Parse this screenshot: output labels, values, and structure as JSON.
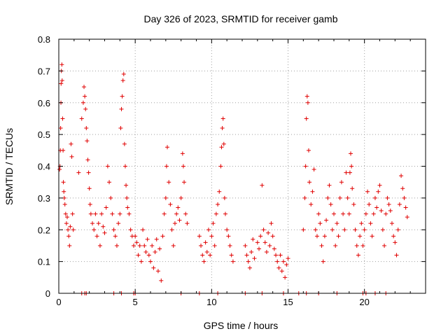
{
  "chart_data": {
    "type": "scatter",
    "title": "Day 326 of 2023, SRMTID for receiver gamb",
    "xlabel": "GPS time / hours",
    "ylabel": "SRMTID / TECUs",
    "xlim": [
      0,
      24
    ],
    "ylim": [
      0,
      0.8
    ],
    "x_ticks": [
      0,
      5,
      10,
      15,
      20
    ],
    "x_tick_labels": [
      "0",
      "5",
      "10",
      "15",
      "20"
    ],
    "y_ticks": [
      0,
      0.1,
      0.2,
      0.3,
      0.4,
      0.5,
      0.6,
      0.7,
      0.8
    ],
    "y_tick_labels": [
      "0",
      "0.1",
      "0.2",
      "0.3",
      "0.4",
      "0.5",
      "0.6",
      "0.7",
      "0.8"
    ],
    "grid": true,
    "marker": "+",
    "color": "#e00000",
    "zero_value_times": [
      1.5,
      1.7,
      1.8,
      3.6,
      4.1,
      4.9,
      5.0,
      8.0,
      9.2,
      10.4,
      12.2,
      13.3,
      14.7,
      15.7,
      16.2,
      17.0,
      18.2,
      19.9,
      20.1,
      20.7,
      21.4
    ],
    "series": [
      {
        "name": "SRMTID",
        "points": [
          [
            0.05,
            0.39
          ],
          [
            0.08,
            0.4
          ],
          [
            0.1,
            0.45
          ],
          [
            0.12,
            0.52
          ],
          [
            0.14,
            0.6
          ],
          [
            0.15,
            0.66
          ],
          [
            0.17,
            0.7
          ],
          [
            0.2,
            0.72
          ],
          [
            0.22,
            0.67
          ],
          [
            0.25,
            0.55
          ],
          [
            0.28,
            0.45
          ],
          [
            0.3,
            0.35
          ],
          [
            0.33,
            0.32
          ],
          [
            0.36,
            0.3
          ],
          [
            0.4,
            0.28
          ],
          [
            0.45,
            0.25
          ],
          [
            0.5,
            0.22
          ],
          [
            0.55,
            0.24
          ],
          [
            0.6,
            0.2
          ],
          [
            0.65,
            0.18
          ],
          [
            0.7,
            0.15
          ],
          [
            0.75,
            0.21
          ],
          [
            0.8,
            0.47
          ],
          [
            0.85,
            0.43
          ],
          [
            0.9,
            0.25
          ],
          [
            0.95,
            0.2
          ],
          [
            1.3,
            0.38
          ],
          [
            1.5,
            0.55
          ],
          [
            1.6,
            0.6
          ],
          [
            1.65,
            0.65
          ],
          [
            1.7,
            0.62
          ],
          [
            1.75,
            0.58
          ],
          [
            1.8,
            0.52
          ],
          [
            1.85,
            0.48
          ],
          [
            1.9,
            0.42
          ],
          [
            1.95,
            0.38
          ],
          [
            2.0,
            0.33
          ],
          [
            2.05,
            0.28
          ],
          [
            2.1,
            0.25
          ],
          [
            2.2,
            0.22
          ],
          [
            2.3,
            0.2
          ],
          [
            2.4,
            0.25
          ],
          [
            2.5,
            0.18
          ],
          [
            2.6,
            0.22
          ],
          [
            2.7,
            0.15
          ],
          [
            2.8,
            0.25
          ],
          [
            2.9,
            0.21
          ],
          [
            3.0,
            0.19
          ],
          [
            3.1,
            0.27
          ],
          [
            3.2,
            0.4
          ],
          [
            3.3,
            0.35
          ],
          [
            3.4,
            0.3
          ],
          [
            3.5,
            0.25
          ],
          [
            3.6,
            0.2
          ],
          [
            3.7,
            0.18
          ],
          [
            3.8,
            0.15
          ],
          [
            3.9,
            0.22
          ],
          [
            4.0,
            0.25
          ],
          [
            4.05,
            0.52
          ],
          [
            4.1,
            0.58
          ],
          [
            4.15,
            0.62
          ],
          [
            4.2,
            0.67
          ],
          [
            4.25,
            0.69
          ],
          [
            4.3,
            0.47
          ],
          [
            4.35,
            0.4
          ],
          [
            4.4,
            0.34
          ],
          [
            4.45,
            0.3
          ],
          [
            4.5,
            0.27
          ],
          [
            4.6,
            0.25
          ],
          [
            4.7,
            0.2
          ],
          [
            4.8,
            0.18
          ],
          [
            4.9,
            0.15
          ],
          [
            5.0,
            0.18
          ],
          [
            5.1,
            0.16
          ],
          [
            5.2,
            0.12
          ],
          [
            5.3,
            0.15
          ],
          [
            5.4,
            0.1
          ],
          [
            5.5,
            0.2
          ],
          [
            5.6,
            0.15
          ],
          [
            5.7,
            0.13
          ],
          [
            5.8,
            0.17
          ],
          [
            5.9,
            0.12
          ],
          [
            6.0,
            0.1
          ],
          [
            6.1,
            0.15
          ],
          [
            6.2,
            0.08
          ],
          [
            6.3,
            0.13
          ],
          [
            6.4,
            0.17
          ],
          [
            6.5,
            0.07
          ],
          [
            6.6,
            0.14
          ],
          [
            6.7,
            0.04
          ],
          [
            6.8,
            0.18
          ],
          [
            6.9,
            0.25
          ],
          [
            7.0,
            0.3
          ],
          [
            7.05,
            0.4
          ],
          [
            7.1,
            0.46
          ],
          [
            7.2,
            0.35
          ],
          [
            7.3,
            0.28
          ],
          [
            7.4,
            0.2
          ],
          [
            7.5,
            0.15
          ],
          [
            7.6,
            0.22
          ],
          [
            7.7,
            0.25
          ],
          [
            7.8,
            0.27
          ],
          [
            7.9,
            0.23
          ],
          [
            8.0,
            0.3
          ],
          [
            8.1,
            0.44
          ],
          [
            8.15,
            0.4
          ],
          [
            8.2,
            0.35
          ],
          [
            8.3,
            0.25
          ],
          [
            8.4,
            0.22
          ],
          [
            9.2,
            0.18
          ],
          [
            9.3,
            0.15
          ],
          [
            9.4,
            0.12
          ],
          [
            9.5,
            0.1
          ],
          [
            9.6,
            0.16
          ],
          [
            9.7,
            0.13
          ],
          [
            9.8,
            0.2
          ],
          [
            9.9,
            0.12
          ],
          [
            10.0,
            0.18
          ],
          [
            10.1,
            0.22
          ],
          [
            10.2,
            0.15
          ],
          [
            10.3,
            0.25
          ],
          [
            10.4,
            0.28
          ],
          [
            10.5,
            0.32
          ],
          [
            10.6,
            0.4
          ],
          [
            10.65,
            0.46
          ],
          [
            10.7,
            0.52
          ],
          [
            10.75,
            0.55
          ],
          [
            10.8,
            0.47
          ],
          [
            10.85,
            0.3
          ],
          [
            10.9,
            0.25
          ],
          [
            11.0,
            0.2
          ],
          [
            11.1,
            0.18
          ],
          [
            11.2,
            0.15
          ],
          [
            11.3,
            0.12
          ],
          [
            11.4,
            0.1
          ],
          [
            12.2,
            0.15
          ],
          [
            12.3,
            0.12
          ],
          [
            12.4,
            0.1
          ],
          [
            12.5,
            0.08
          ],
          [
            12.6,
            0.13
          ],
          [
            12.7,
            0.17
          ],
          [
            12.8,
            0.11
          ],
          [
            13.0,
            0.16
          ],
          [
            13.1,
            0.14
          ],
          [
            13.2,
            0.18
          ],
          [
            13.3,
            0.34
          ],
          [
            13.4,
            0.2
          ],
          [
            13.5,
            0.16
          ],
          [
            13.6,
            0.13
          ],
          [
            13.7,
            0.19
          ],
          [
            13.8,
            0.15
          ],
          [
            13.9,
            0.22
          ],
          [
            14.0,
            0.18
          ],
          [
            14.1,
            0.14
          ],
          [
            14.2,
            0.12
          ],
          [
            14.3,
            0.1
          ],
          [
            14.4,
            0.08
          ],
          [
            14.5,
            0.12
          ],
          [
            14.6,
            0.07
          ],
          [
            14.7,
            0.1
          ],
          [
            14.8,
            0.05
          ],
          [
            14.9,
            0.09
          ],
          [
            15.0,
            0.11
          ],
          [
            16.0,
            0.2
          ],
          [
            16.1,
            0.3
          ],
          [
            16.15,
            0.4
          ],
          [
            16.2,
            0.55
          ],
          [
            16.25,
            0.62
          ],
          [
            16.3,
            0.6
          ],
          [
            16.35,
            0.45
          ],
          [
            16.4,
            0.35
          ],
          [
            16.5,
            0.28
          ],
          [
            16.6,
            0.32
          ],
          [
            16.7,
            0.39
          ],
          [
            16.8,
            0.2
          ],
          [
            16.9,
            0.18
          ],
          [
            17.0,
            0.25
          ],
          [
            17.1,
            0.22
          ],
          [
            17.2,
            0.15
          ],
          [
            17.3,
            0.1
          ],
          [
            17.4,
            0.18
          ],
          [
            17.5,
            0.23
          ],
          [
            17.6,
            0.3
          ],
          [
            17.7,
            0.34
          ],
          [
            17.8,
            0.28
          ],
          [
            17.9,
            0.2
          ],
          [
            18.0,
            0.25
          ],
          [
            18.1,
            0.15
          ],
          [
            18.2,
            0.22
          ],
          [
            18.3,
            0.18
          ],
          [
            18.4,
            0.3
          ],
          [
            18.5,
            0.35
          ],
          [
            18.6,
            0.25
          ],
          [
            18.7,
            0.2
          ],
          [
            18.8,
            0.38
          ],
          [
            18.9,
            0.3
          ],
          [
            19.0,
            0.25
          ],
          [
            19.05,
            0.38
          ],
          [
            19.1,
            0.44
          ],
          [
            19.15,
            0.4
          ],
          [
            19.2,
            0.33
          ],
          [
            19.3,
            0.28
          ],
          [
            19.4,
            0.2
          ],
          [
            19.5,
            0.15
          ],
          [
            19.6,
            0.12
          ],
          [
            19.7,
            0.18
          ],
          [
            19.8,
            0.22
          ],
          [
            19.9,
            0.15
          ],
          [
            20.0,
            0.2
          ],
          [
            20.1,
            0.25
          ],
          [
            20.2,
            0.32
          ],
          [
            20.3,
            0.28
          ],
          [
            20.4,
            0.22
          ],
          [
            20.5,
            0.18
          ],
          [
            20.6,
            0.25
          ],
          [
            20.7,
            0.3
          ],
          [
            20.8,
            0.27
          ],
          [
            20.9,
            0.32
          ],
          [
            21.0,
            0.34
          ],
          [
            21.1,
            0.26
          ],
          [
            21.2,
            0.2
          ],
          [
            21.3,
            0.15
          ],
          [
            21.4,
            0.25
          ],
          [
            21.5,
            0.3
          ],
          [
            21.6,
            0.28
          ],
          [
            21.7,
            0.26
          ],
          [
            21.8,
            0.22
          ],
          [
            21.9,
            0.18
          ],
          [
            22.0,
            0.16
          ],
          [
            22.1,
            0.12
          ],
          [
            22.2,
            0.2
          ],
          [
            22.3,
            0.28
          ],
          [
            22.4,
            0.37
          ],
          [
            22.5,
            0.33
          ],
          [
            22.6,
            0.3
          ],
          [
            22.7,
            0.27
          ],
          [
            22.8,
            0.24
          ]
        ]
      }
    ]
  }
}
